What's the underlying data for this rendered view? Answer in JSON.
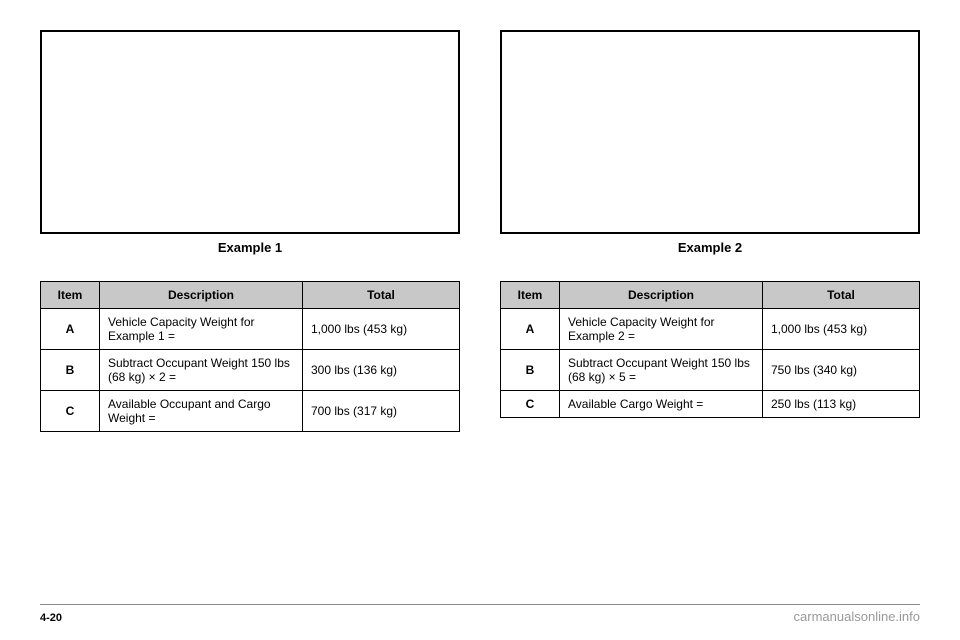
{
  "left": {
    "caption": "Example 1",
    "headers": {
      "item": "Item",
      "desc": "Description",
      "total": "Total"
    },
    "rows": [
      {
        "item": "A",
        "desc": "Vehicle Capacity Weight for Example 1 =",
        "total": "1,000 lbs (453 kg)"
      },
      {
        "item": "B",
        "desc": "Subtract Occupant Weight 150 lbs (68 kg) × 2 =",
        "total": "300 lbs (136 kg)"
      },
      {
        "item": "C",
        "desc": "Available Occupant and Cargo Weight =",
        "total": "700 lbs (317 kg)"
      }
    ]
  },
  "right": {
    "caption": "Example 2",
    "headers": {
      "item": "Item",
      "desc": "Description",
      "total": "Total"
    },
    "rows": [
      {
        "item": "A",
        "desc": "Vehicle Capacity Weight for Example 2 =",
        "total": "1,000 lbs (453 kg)"
      },
      {
        "item": "B",
        "desc": "Subtract Occupant Weight 150 lbs (68 kg) × 5 =",
        "total": "750 lbs (340 kg)"
      },
      {
        "item": "C",
        "desc": "Available Cargo Weight =",
        "total": "250 lbs (113 kg)"
      }
    ]
  },
  "footer": {
    "pagenum": "4-20",
    "watermark": "carmanualsonline.info"
  }
}
